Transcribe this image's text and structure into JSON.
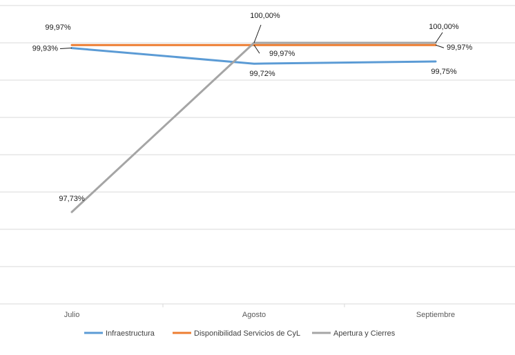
{
  "chart_data": {
    "type": "line",
    "categories": [
      "Julio",
      "Agosto",
      "Septiembre"
    ],
    "series": [
      {
        "name": "Infraestructura",
        "values": [
          99.93,
          99.72,
          99.75
        ],
        "labels": [
          "99,93%",
          "99,72%",
          "99,75%"
        ],
        "color": "#5b9bd5"
      },
      {
        "name": "Disponibilidad Servicios de CyL",
        "values": [
          99.97,
          99.97,
          99.97
        ],
        "labels": [
          "99,97%",
          "99,97%",
          "99,97%"
        ],
        "color": "#ed7d31"
      },
      {
        "name": "Apertura y Cierres",
        "values": [
          97.73,
          100.0,
          100.0
        ],
        "labels": [
          "97,73%",
          "100,00%",
          "100,00%"
        ],
        "color": "#a5a5a5"
      }
    ],
    "ylim": [
      96.5,
      100.1
    ],
    "title": "",
    "xlabel": "",
    "ylabel": "",
    "grid": true,
    "legend": "bottom"
  }
}
